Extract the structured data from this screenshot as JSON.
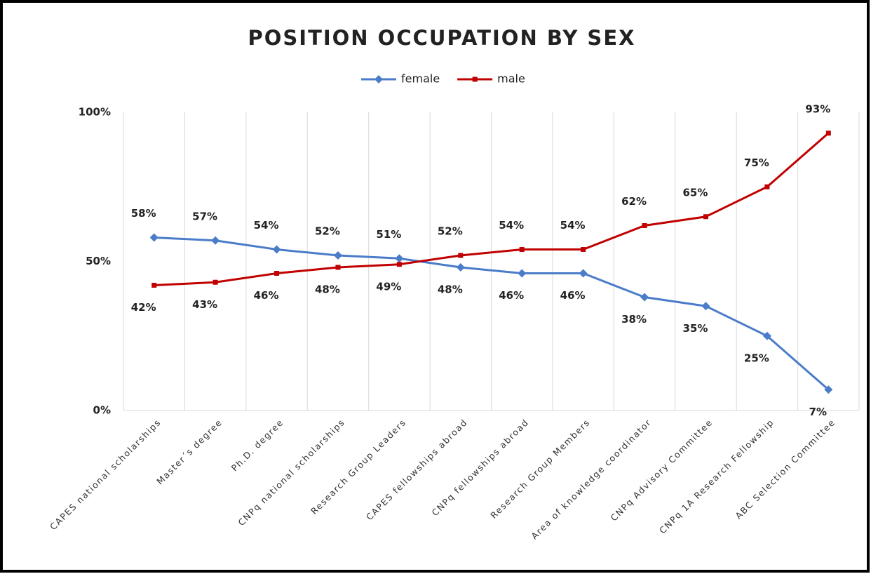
{
  "chart_data": {
    "type": "line",
    "title": "POSITION OCCUPATION BY SEX",
    "categories": [
      "CAPES national scholarships",
      "Master´s degree",
      "Ph.D. degree",
      "CNPq national scholarships",
      "Research Group Leaders",
      "CAPES fellowships abroad",
      "CNPq fellowships abroad",
      "Research Group Members",
      "Area of knowledge coordinator",
      "CNPq Advisory Committee",
      "CNPq 1A Research Fellowship",
      "ABC Selection Committee"
    ],
    "series": [
      {
        "name": "female",
        "color": "#4a7cc9",
        "marker": "diamond",
        "values": [
          58,
          57,
          54,
          52,
          51,
          48,
          46,
          46,
          38,
          35,
          25,
          7
        ],
        "value_labels": [
          "58%",
          "57%",
          "54%",
          "52%",
          "51%",
          "48%",
          "46%",
          "46%",
          "38%",
          "35%",
          "25%",
          "7%"
        ]
      },
      {
        "name": "male",
        "color": "#c00000",
        "marker": "square",
        "values": [
          42,
          43,
          46,
          48,
          49,
          52,
          54,
          54,
          62,
          65,
          75,
          93
        ],
        "value_labels": [
          "42%",
          "43%",
          "46%",
          "48%",
          "49%",
          "52%",
          "54%",
          "54%",
          "62%",
          "65%",
          "75%",
          "93%"
        ]
      }
    ],
    "ylim": [
      0,
      100
    ],
    "yticks": [
      {
        "value": 0,
        "label": "0%"
      },
      {
        "value": 50,
        "label": "50%"
      },
      {
        "value": 100,
        "label": "100%"
      }
    ],
    "grid": "vertical",
    "legend": "top"
  }
}
